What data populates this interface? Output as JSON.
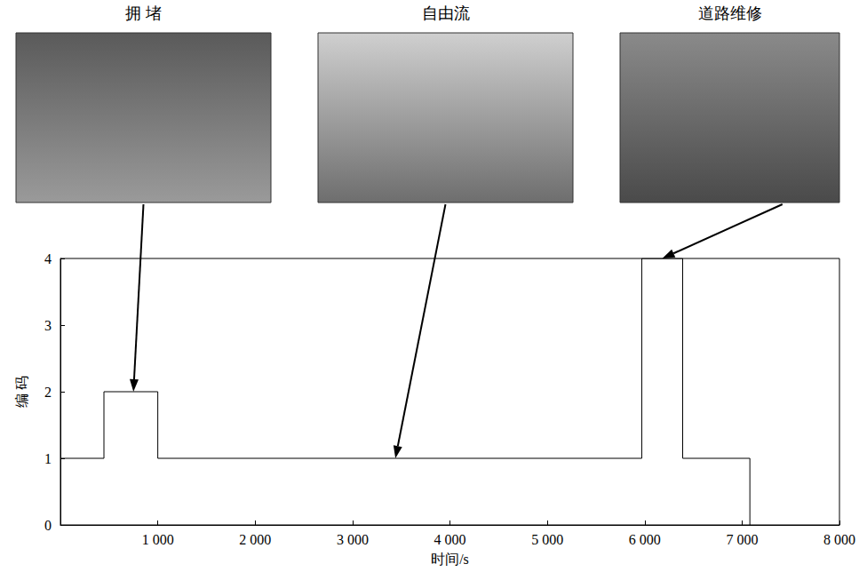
{
  "chart_data": {
    "type": "step",
    "x_label": "时间/s",
    "y_label": "编 码",
    "x": [
      0,
      447,
      1000,
      5970,
      6390,
      7080
    ],
    "values": [
      1,
      2,
      1,
      4,
      1,
      0
    ],
    "color": "#000000",
    "xlim": [
      0,
      8000
    ],
    "xticks": [
      {
        "value": 1000,
        "label": "1 000"
      },
      {
        "value": 2000,
        "label": "2 000"
      },
      {
        "value": 3000,
        "label": "3 000"
      },
      {
        "value": 4000,
        "label": "4 000"
      },
      {
        "value": 5000,
        "label": "5 000"
      },
      {
        "value": 6000,
        "label": "6 000"
      },
      {
        "value": 7000,
        "label": "7 000"
      },
      {
        "value": 8000,
        "label": "8 000"
      }
    ],
    "ylim": [
      0,
      4
    ],
    "yticks": [
      0,
      1,
      2,
      3,
      4
    ],
    "grid": false,
    "annotations": [
      {
        "text": "拥 堵",
        "x": 750,
        "y": 2
      },
      {
        "text": "自由流",
        "x": 3440,
        "y": 1
      },
      {
        "text": "道路维修",
        "x": 6180,
        "y": 4
      }
    ]
  }
}
